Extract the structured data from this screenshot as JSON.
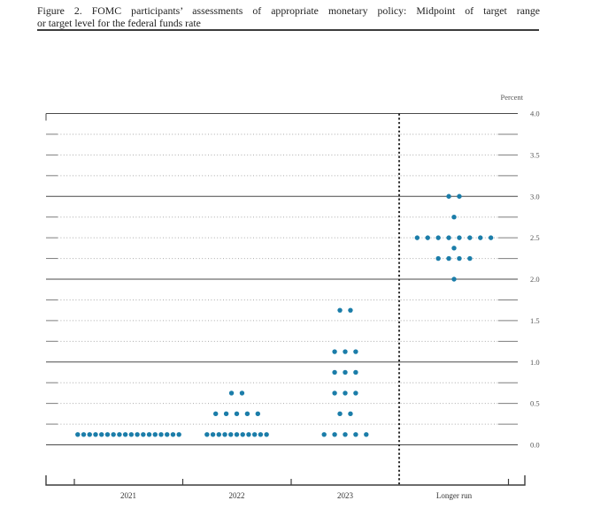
{
  "figure": {
    "title_line1": "Figure 2. FOMC participants’ assessments of appropriate monetary policy: Midpoint of target range",
    "title_line2": "or target level for the federal funds rate"
  },
  "chart_data": {
    "type": "scatter",
    "title": "FOMC participants’ assessments of appropriate monetary policy: Midpoint of target range or target level for the federal funds rate",
    "ylabel": "Percent",
    "xlabel": "",
    "grid": "dotted lines every 0.25, solid lines at integers",
    "legend_position": "none",
    "y_axis": {
      "min": 0.0,
      "max": 4.0,
      "grid_step": 0.25,
      "label_step": 0.5,
      "tick_labels": [
        "4.0",
        "3.5",
        "3.0",
        "2.5",
        "2.0",
        "1.5",
        "1.0",
        "0.5",
        "0.0"
      ]
    },
    "categories": [
      "2021",
      "2022",
      "2023",
      "Longer run"
    ],
    "separator_before_category": "Longer run",
    "dot_color": "#1b7da9",
    "series": [
      {
        "category": "2021",
        "dots": [
          {
            "value": 0.125,
            "count": 18
          }
        ]
      },
      {
        "category": "2022",
        "dots": [
          {
            "value": 0.625,
            "count": 2
          },
          {
            "value": 0.375,
            "count": 5
          },
          {
            "value": 0.125,
            "count": 11
          }
        ]
      },
      {
        "category": "2023",
        "dots": [
          {
            "value": 1.625,
            "count": 2
          },
          {
            "value": 1.125,
            "count": 3
          },
          {
            "value": 0.875,
            "count": 3
          },
          {
            "value": 0.625,
            "count": 3
          },
          {
            "value": 0.375,
            "count": 2
          },
          {
            "value": 0.125,
            "count": 5
          }
        ]
      },
      {
        "category": "Longer run",
        "dots": [
          {
            "value": 3.0,
            "count": 2
          },
          {
            "value": 2.75,
            "count": 1
          },
          {
            "value": 2.5,
            "count": 8
          },
          {
            "value": 2.375,
            "count": 1
          },
          {
            "value": 2.25,
            "count": 4
          },
          {
            "value": 2.0,
            "count": 1
          }
        ]
      }
    ]
  }
}
